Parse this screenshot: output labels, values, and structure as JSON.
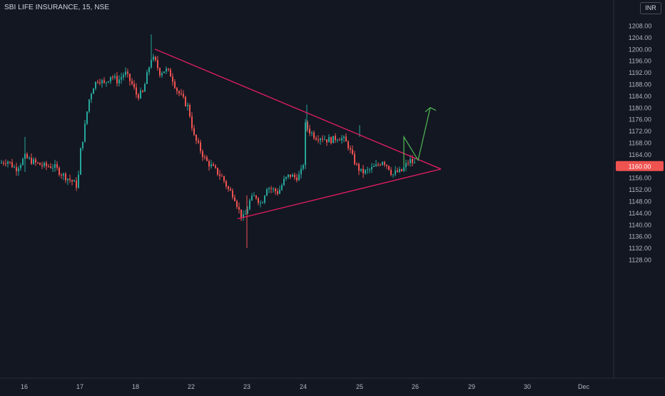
{
  "header": {
    "symbol_title": "SBI LIFE INSURANCE, 15, NSE",
    "currency": "INR"
  },
  "colors": {
    "background": "#131722",
    "up": "#26a69a",
    "down": "#ef5350",
    "pattern_line": "#e91e63",
    "projection": "#4caf50",
    "price_tag": "#ef5350",
    "axis_text": "#b2b5be"
  },
  "chart_data": {
    "type": "candlestick",
    "symbol": "SBI LIFE INSURANCE",
    "interval": "15",
    "exchange": "NSE",
    "ylim": [
      1124,
      1212
    ],
    "y_ticks": [
      1128,
      1132,
      1136,
      1140,
      1144,
      1148,
      1152,
      1156,
      1160,
      1164,
      1168,
      1172,
      1176,
      1180,
      1184,
      1188,
      1192,
      1196,
      1200,
      1204,
      1208
    ],
    "x_ticks": [
      "16",
      "17",
      "18",
      "22",
      "23",
      "24",
      "25",
      "26",
      "29",
      "30",
      "Dec"
    ],
    "last_price": "1160.00",
    "grid": false,
    "price_path": [
      [
        0,
        1161
      ],
      [
        10,
        1162
      ],
      [
        22,
        1159
      ],
      [
        35,
        1163
      ],
      [
        50,
        1161
      ],
      [
        62,
        1160
      ],
      [
        75,
        1160
      ],
      [
        88,
        1157
      ],
      [
        100,
        1155
      ],
      [
        109,
        1153
      ],
      [
        112,
        1164
      ],
      [
        118,
        1172
      ],
      [
        124,
        1182
      ],
      [
        130,
        1187
      ],
      [
        138,
        1190
      ],
      [
        146,
        1188
      ],
      [
        155,
        1191
      ],
      [
        165,
        1189
      ],
      [
        175,
        1192
      ],
      [
        185,
        1188
      ],
      [
        192,
        1184
      ],
      [
        200,
        1185
      ],
      [
        207,
        1192
      ],
      [
        212,
        1197
      ],
      [
        217,
        1196
      ],
      [
        224,
        1192
      ],
      [
        232,
        1193
      ],
      [
        240,
        1191
      ],
      [
        248,
        1186
      ],
      [
        256,
        1183
      ],
      [
        264,
        1180
      ],
      [
        272,
        1170
      ],
      [
        280,
        1166
      ],
      [
        288,
        1162
      ],
      [
        296,
        1160
      ],
      [
        304,
        1158
      ],
      [
        312,
        1156
      ],
      [
        320,
        1152
      ],
      [
        328,
        1150
      ],
      [
        336,
        1144
      ],
      [
        342,
        1142
      ],
      [
        350,
        1148
      ],
      [
        358,
        1150
      ],
      [
        366,
        1147
      ],
      [
        374,
        1153
      ],
      [
        382,
        1152
      ],
      [
        390,
        1151
      ],
      [
        398,
        1155
      ],
      [
        406,
        1157
      ],
      [
        414,
        1156
      ],
      [
        421,
        1157
      ],
      [
        425,
        1161
      ],
      [
        428,
        1174
      ],
      [
        434,
        1172
      ],
      [
        442,
        1170
      ],
      [
        450,
        1170
      ],
      [
        458,
        1169
      ],
      [
        466,
        1169
      ],
      [
        474,
        1170
      ],
      [
        482,
        1169
      ],
      [
        488,
        1167
      ],
      [
        494,
        1163
      ],
      [
        500,
        1160
      ],
      [
        506,
        1158
      ],
      [
        512,
        1158
      ],
      [
        520,
        1159
      ],
      [
        528,
        1160
      ],
      [
        536,
        1162
      ],
      [
        544,
        1160
      ],
      [
        550,
        1157
      ],
      [
        556,
        1158
      ],
      [
        562,
        1158
      ],
      [
        568,
        1160
      ],
      [
        574,
        1162
      ],
      [
        580,
        1161
      ],
      [
        583,
        1160
      ]
    ],
    "annotations": {
      "triangle_upper": [
        [
          217,
          1200
        ],
        [
          618,
          1159
        ]
      ],
      "triangle_lower": [
        [
          333,
          1142
        ],
        [
          618,
          1159
        ]
      ],
      "projection_arrow": [
        [
          566,
          1160
        ],
        [
          566,
          1170
        ],
        [
          586,
          1162
        ],
        [
          603,
          1180
        ]
      ]
    }
  }
}
